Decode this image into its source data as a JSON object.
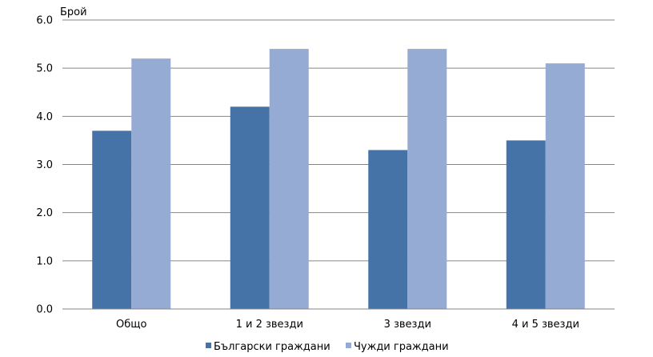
{
  "chart_data": {
    "type": "bar",
    "ylabel": "Брой",
    "ylim": [
      0,
      6
    ],
    "yticks": [
      "0.0",
      "1.0",
      "2.0",
      "3.0",
      "4.0",
      "5.0",
      "6.0"
    ],
    "categories": [
      "Общо",
      "1 и 2 звезди",
      "3 звезди",
      "4 и 5 звезди"
    ],
    "series": [
      {
        "name": "Български граждани",
        "values": [
          3.7,
          4.2,
          3.3,
          3.5
        ],
        "color": "#4572A7"
      },
      {
        "name": "Чужди граждани",
        "values": [
          5.2,
          5.4,
          5.4,
          5.1
        ],
        "color": "#95ABD3"
      }
    ],
    "grid": true,
    "legend": "bottom"
  }
}
